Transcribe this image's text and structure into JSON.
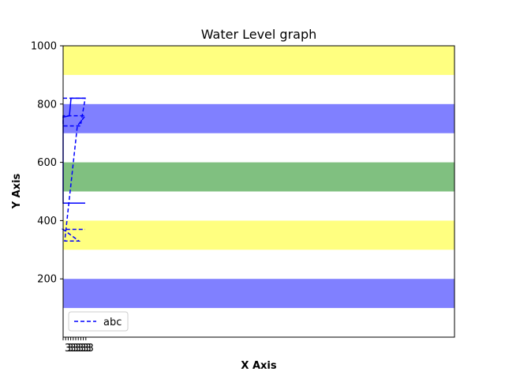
{
  "chart_data": {
    "type": "line",
    "title": "Water Level graph",
    "xlabel": "X Axis",
    "ylabel": "Y Axis",
    "x_tick_labels": [
      "3",
      "3",
      "3",
      "3",
      "3",
      "3",
      "3",
      "3",
      "3",
      "3"
    ],
    "y_ticks": [
      200,
      400,
      600,
      800,
      1000
    ],
    "ylim": [
      0,
      1000
    ],
    "grid": false,
    "legend_placement": "lower-left",
    "bands": [
      {
        "y0": 900,
        "y1": 1000,
        "color": "#ffff80"
      },
      {
        "y0": 700,
        "y1": 800,
        "color": "#8080ff"
      },
      {
        "y0": 500,
        "y1": 600,
        "color": "#80c080"
      },
      {
        "y0": 300,
        "y1": 400,
        "color": "#ffff80"
      },
      {
        "y0": 100,
        "y1": 200,
        "color": "#8080ff"
      }
    ],
    "series": [
      {
        "name": "abc",
        "color": "#0000ff",
        "style": "dashed",
        "points": [
          [
            0,
            820
          ],
          [
            28,
            820
          ],
          [
            22,
            725
          ],
          [
            0,
            725
          ],
          [
            0,
            760
          ],
          [
            28,
            760
          ],
          [
            18,
            725
          ],
          [
            2,
            330
          ],
          [
            20,
            330
          ],
          [
            0,
            370
          ],
          [
            28,
            370
          ]
        ]
      },
      {
        "name": "",
        "color": "#0000ff",
        "style": "solid",
        "points": [
          [
            28,
            820
          ],
          [
            10,
            820
          ],
          [
            8,
            760
          ],
          [
            0,
            755
          ],
          [
            0,
            460
          ],
          [
            28,
            460
          ]
        ]
      }
    ]
  }
}
